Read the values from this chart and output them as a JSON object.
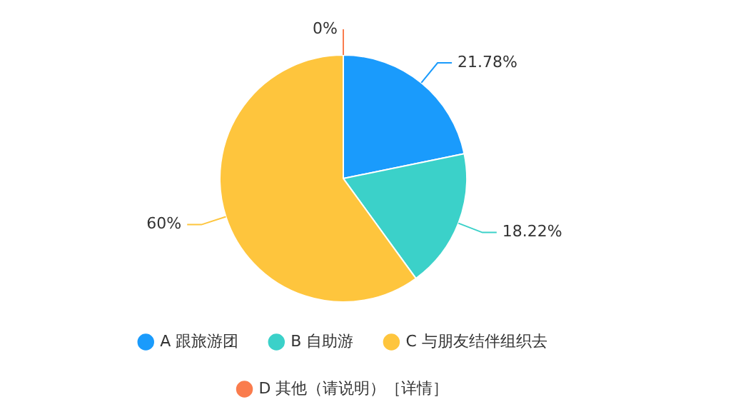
{
  "chart_data": {
    "type": "pie",
    "categories": [
      "A 跟旅游团",
      "B 自助游",
      "C 与朋友结伴组织去",
      "D 其他（请说明）［详情］"
    ],
    "values": [
      21.78,
      18.22,
      60,
      0
    ],
    "colors": [
      "#1a9bfc",
      "#3bd1c9",
      "#fec53d",
      "#fa7c4d"
    ],
    "value_labels": [
      "21.78%",
      "18.22%",
      "60%",
      "0%"
    ],
    "legend": "bottom"
  }
}
